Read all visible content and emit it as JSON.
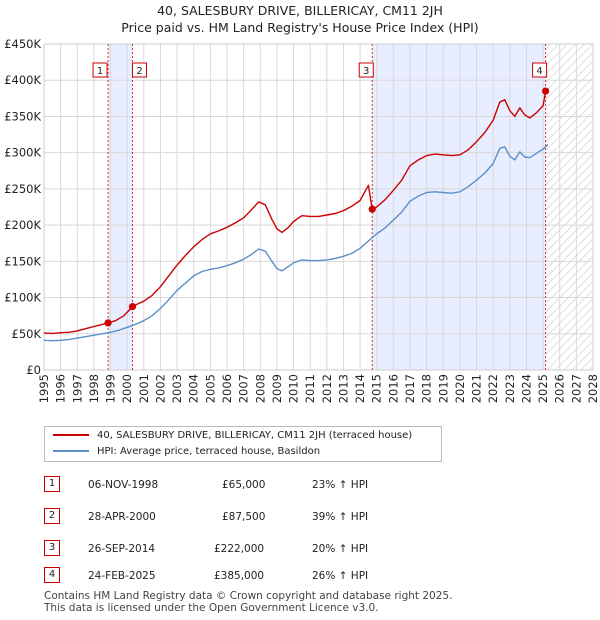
{
  "chart_data": {
    "type": "line",
    "title": "40, SALESBURY DRIVE, BILLERICAY, CM11 2JH",
    "subtitle": "Price paid vs. HM Land Registry's House Price Index (HPI)",
    "xlim": [
      1995,
      2028
    ],
    "ylim": [
      0,
      450000
    ],
    "x_ticks": [
      "1995",
      "1996",
      "1997",
      "1998",
      "1999",
      "2000",
      "2001",
      "2002",
      "2003",
      "2004",
      "2005",
      "2006",
      "2007",
      "2008",
      "2009",
      "2010",
      "2011",
      "2012",
      "2013",
      "2014",
      "2015",
      "2016",
      "2017",
      "2018",
      "2019",
      "2020",
      "2021",
      "2022",
      "2023",
      "2024",
      "2025",
      "2026",
      "2027",
      "2028"
    ],
    "y_ticks": [
      {
        "value": 0,
        "label": "£0"
      },
      {
        "value": 50000,
        "label": "£50K"
      },
      {
        "value": 100000,
        "label": "£100K"
      },
      {
        "value": 150000,
        "label": "£150K"
      },
      {
        "value": 200000,
        "label": "£200K"
      },
      {
        "value": 250000,
        "label": "£250K"
      },
      {
        "value": 300000,
        "label": "£300K"
      },
      {
        "value": 350000,
        "label": "£350K"
      },
      {
        "value": 400000,
        "label": "£400K"
      },
      {
        "value": 450000,
        "label": "£450K"
      }
    ],
    "grid": true,
    "shaded_ranges": [
      [
        1998.85,
        2000.32
      ],
      [
        2014.73,
        2025.15
      ]
    ],
    "hatched_from": 2025.15,
    "series": [
      {
        "name": "40, SALESBURY DRIVE, BILLERICAY, CM11 2JH (terraced house)",
        "color": "#cc0000",
        "points": [
          [
            1995.0,
            51000
          ],
          [
            1995.5,
            50500
          ],
          [
            1996.0,
            51500
          ],
          [
            1996.5,
            52000
          ],
          [
            1997.0,
            54000
          ],
          [
            1997.5,
            57000
          ],
          [
            1998.0,
            60000
          ],
          [
            1998.5,
            63000
          ],
          [
            1998.85,
            65000
          ],
          [
            1999.3,
            68000
          ],
          [
            1999.8,
            75000
          ],
          [
            2000.32,
            87500
          ],
          [
            2000.7,
            92000
          ],
          [
            2001.0,
            95000
          ],
          [
            2001.5,
            103000
          ],
          [
            2002.0,
            115000
          ],
          [
            2002.5,
            130000
          ],
          [
            2003.0,
            145000
          ],
          [
            2003.5,
            158000
          ],
          [
            2004.0,
            170000
          ],
          [
            2004.5,
            180000
          ],
          [
            2005.0,
            188000
          ],
          [
            2005.5,
            192000
          ],
          [
            2006.0,
            197000
          ],
          [
            2006.5,
            203000
          ],
          [
            2007.0,
            210000
          ],
          [
            2007.5,
            222000
          ],
          [
            2007.9,
            232000
          ],
          [
            2008.3,
            228000
          ],
          [
            2008.7,
            208000
          ],
          [
            2009.0,
            195000
          ],
          [
            2009.3,
            190000
          ],
          [
            2009.7,
            197000
          ],
          [
            2010.0,
            205000
          ],
          [
            2010.5,
            213000
          ],
          [
            2011.0,
            212000
          ],
          [
            2011.5,
            212000
          ],
          [
            2012.0,
            214000
          ],
          [
            2012.5,
            216000
          ],
          [
            2013.0,
            220000
          ],
          [
            2013.5,
            226000
          ],
          [
            2014.0,
            234000
          ],
          [
            2014.5,
            255000
          ],
          [
            2014.73,
            222000
          ],
          [
            2015.0,
            225000
          ],
          [
            2015.5,
            235000
          ],
          [
            2016.0,
            248000
          ],
          [
            2016.5,
            262000
          ],
          [
            2017.0,
            282000
          ],
          [
            2017.5,
            290000
          ],
          [
            2018.0,
            296000
          ],
          [
            2018.5,
            298000
          ],
          [
            2019.0,
            297000
          ],
          [
            2019.5,
            296000
          ],
          [
            2020.0,
            297000
          ],
          [
            2020.5,
            304000
          ],
          [
            2021.0,
            315000
          ],
          [
            2021.5,
            328000
          ],
          [
            2022.0,
            345000
          ],
          [
            2022.4,
            370000
          ],
          [
            2022.7,
            373000
          ],
          [
            2023.0,
            358000
          ],
          [
            2023.3,
            350000
          ],
          [
            2023.6,
            362000
          ],
          [
            2023.9,
            352000
          ],
          [
            2024.2,
            348000
          ],
          [
            2024.6,
            355000
          ],
          [
            2025.0,
            365000
          ],
          [
            2025.15,
            385000
          ],
          [
            2025.3,
            383000
          ]
        ]
      },
      {
        "name": "HPI: Average price, terraced house, Basildon",
        "color": "#5b8fc7",
        "points": [
          [
            1995.0,
            41000
          ],
          [
            1995.5,
            40500
          ],
          [
            1996.0,
            41000
          ],
          [
            1996.5,
            42000
          ],
          [
            1997.0,
            44000
          ],
          [
            1997.5,
            46000
          ],
          [
            1998.0,
            48000
          ],
          [
            1998.5,
            50000
          ],
          [
            1999.0,
            52000
          ],
          [
            1999.5,
            55000
          ],
          [
            2000.0,
            59000
          ],
          [
            2000.5,
            63000
          ],
          [
            2001.0,
            68000
          ],
          [
            2001.5,
            75000
          ],
          [
            2002.0,
            85000
          ],
          [
            2002.5,
            97000
          ],
          [
            2003.0,
            110000
          ],
          [
            2003.5,
            120000
          ],
          [
            2004.0,
            130000
          ],
          [
            2004.5,
            136000
          ],
          [
            2005.0,
            139000
          ],
          [
            2005.5,
            141000
          ],
          [
            2006.0,
            144000
          ],
          [
            2006.5,
            148000
          ],
          [
            2007.0,
            153000
          ],
          [
            2007.5,
            160000
          ],
          [
            2007.9,
            167000
          ],
          [
            2008.3,
            164000
          ],
          [
            2008.7,
            150000
          ],
          [
            2009.0,
            140000
          ],
          [
            2009.3,
            137000
          ],
          [
            2009.7,
            143000
          ],
          [
            2010.0,
            148000
          ],
          [
            2010.5,
            152000
          ],
          [
            2011.0,
            151000
          ],
          [
            2011.5,
            151000
          ],
          [
            2012.0,
            152000
          ],
          [
            2012.5,
            154000
          ],
          [
            2013.0,
            157000
          ],
          [
            2013.5,
            161000
          ],
          [
            2014.0,
            168000
          ],
          [
            2014.5,
            178000
          ],
          [
            2015.0,
            188000
          ],
          [
            2015.5,
            196000
          ],
          [
            2016.0,
            207000
          ],
          [
            2016.5,
            218000
          ],
          [
            2017.0,
            233000
          ],
          [
            2017.5,
            240000
          ],
          [
            2018.0,
            245000
          ],
          [
            2018.5,
            246000
          ],
          [
            2019.0,
            245000
          ],
          [
            2019.5,
            244000
          ],
          [
            2020.0,
            246000
          ],
          [
            2020.5,
            253000
          ],
          [
            2021.0,
            262000
          ],
          [
            2021.5,
            272000
          ],
          [
            2022.0,
            285000
          ],
          [
            2022.4,
            306000
          ],
          [
            2022.7,
            308000
          ],
          [
            2023.0,
            295000
          ],
          [
            2023.3,
            290000
          ],
          [
            2023.6,
            301000
          ],
          [
            2023.9,
            294000
          ],
          [
            2024.2,
            293000
          ],
          [
            2024.6,
            299000
          ],
          [
            2025.0,
            305000
          ],
          [
            2025.3,
            311000
          ]
        ]
      }
    ],
    "transactions": [
      {
        "num": "1",
        "date": "06-NOV-1998",
        "x": 1998.85,
        "price_value": 65000,
        "price": "£65,000",
        "hpi": "23% ↑ HPI"
      },
      {
        "num": "2",
        "date": "28-APR-2000",
        "x": 2000.32,
        "price_value": 87500,
        "price": "£87,500",
        "hpi": "39% ↑ HPI"
      },
      {
        "num": "3",
        "date": "26-SEP-2014",
        "x": 2014.73,
        "price_value": 222000,
        "price": "£222,000",
        "hpi": "20% ↑ HPI"
      },
      {
        "num": "4",
        "date": "24-FEB-2025",
        "x": 2025.15,
        "price_value": 385000,
        "price": "£385,000",
        "hpi": "26% ↑ HPI"
      }
    ]
  },
  "legend": {
    "property_label": "40, SALESBURY DRIVE, BILLERICAY, CM11 2JH (terraced house)",
    "hpi_label": "HPI: Average price, terraced house, Basildon"
  },
  "footer": {
    "line1": "Contains HM Land Registry data © Crown copyright and database right 2025.",
    "line2": "This data is licensed under the Open Government Licence v3.0."
  },
  "colors": {
    "property": "#cc0000",
    "hpi": "#5b8fc7",
    "shade": "#e8eeff",
    "grid": "#d8d8d8"
  }
}
